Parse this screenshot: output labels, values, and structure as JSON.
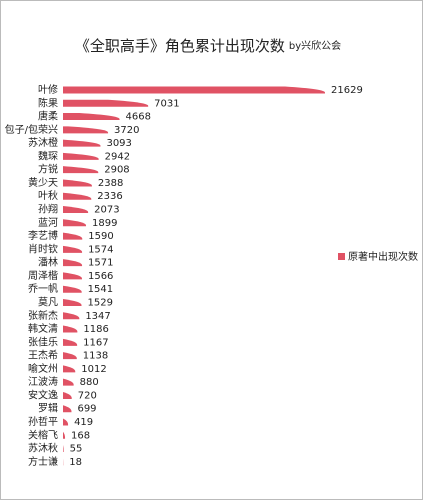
{
  "chart_data": {
    "type": "bar",
    "orientation": "horizontal",
    "title": "《全职高手》角色累计出现次数",
    "subtitle": "by兴欣公会",
    "categories": [
      "叶修",
      "陈果",
      "唐柔",
      "包子/包荣兴",
      "苏沐橙",
      "魏琛",
      "方锐",
      "黄少天",
      "叶秋",
      "孙翔",
      "蓝河",
      "李艺博",
      "肖时钦",
      "潘林",
      "周泽楷",
      "乔一帆",
      "莫凡",
      "张新杰",
      "韩文清",
      "张佳乐",
      "王杰希",
      "喻文州",
      "江波涛",
      "安文逸",
      "罗辑",
      "孙哲平",
      "关榕飞",
      "苏沐秋",
      "方士谦"
    ],
    "series": [
      {
        "name": "原著中出现次数",
        "color": "#e05264",
        "values": [
          21629,
          7031,
          4668,
          3720,
          3093,
          2942,
          2908,
          2388,
          2336,
          2073,
          1899,
          1590,
          1574,
          1571,
          1566,
          1541,
          1529,
          1347,
          1186,
          1167,
          1138,
          1012,
          880,
          720,
          699,
          419,
          168,
          55,
          18
        ]
      }
    ],
    "legend": "right"
  }
}
